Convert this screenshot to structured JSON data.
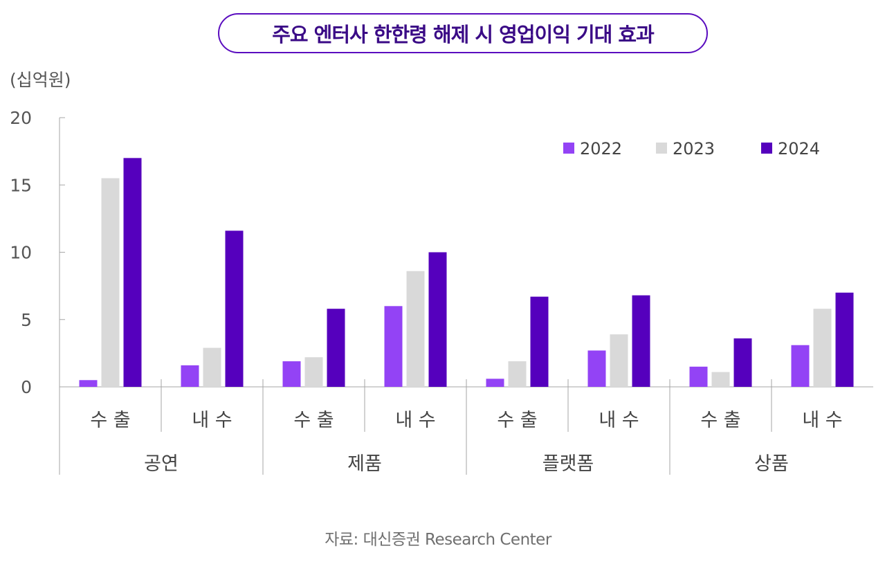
{
  "title": "주요 엔터사 한한령 해제 시 영업이익 기대 효과",
  "unit_label": "(십억원)",
  "source": "자료: 대신증권 Research Center",
  "colors": {
    "2022": "#9343f5",
    "2023": "#d9d9d9",
    "2024": "#5500bd",
    "title_border": "#5a0dbf"
  },
  "chart_data": {
    "type": "bar",
    "ylim": [
      0,
      20
    ],
    "yticks": [
      "20",
      "15",
      "10",
      "5",
      "0"
    ],
    "ytick_values": [
      20,
      15,
      10,
      5,
      0
    ],
    "legend_position": "top-right",
    "groups": [
      {
        "label": "공연",
        "subcategories": [
          "수 출",
          "내 수"
        ]
      },
      {
        "label": "제품",
        "subcategories": [
          "수 출",
          "내 수"
        ]
      },
      {
        "label": "플랫폼",
        "subcategories": [
          "수 출",
          "내 수"
        ]
      },
      {
        "label": "상품",
        "subcategories": [
          "수 출",
          "내 수"
        ]
      }
    ],
    "categories": [
      "공연 수출",
      "공연 내수",
      "제품 수출",
      "제품 내수",
      "플랫폼 수출",
      "플랫폼 내수",
      "상품 수출",
      "상품 내수"
    ],
    "series": [
      {
        "name": "2022",
        "color": "#9343f5",
        "values": [
          0.5,
          1.6,
          1.9,
          6.0,
          0.6,
          2.7,
          1.5,
          3.1
        ]
      },
      {
        "name": "2023",
        "color": "#d9d9d9",
        "values": [
          15.5,
          2.9,
          2.2,
          8.6,
          1.9,
          3.9,
          1.1,
          5.8
        ]
      },
      {
        "name": "2024",
        "color": "#5500bd",
        "values": [
          17.0,
          11.6,
          5.8,
          10.0,
          6.7,
          6.8,
          3.6,
          7.0
        ]
      }
    ]
  }
}
